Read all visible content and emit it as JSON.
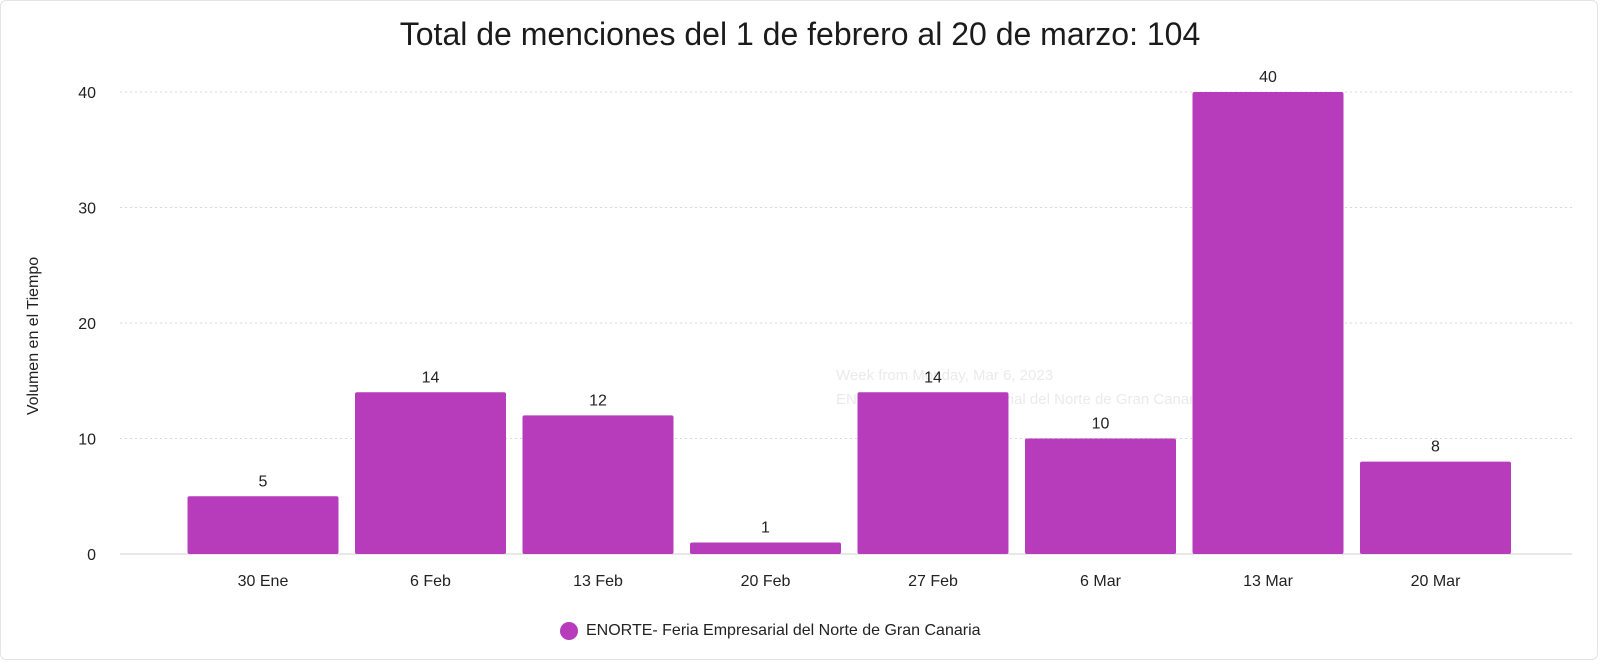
{
  "chart_data": {
    "type": "bar",
    "title": "Total de menciones del 1 de febrero al 20 de marzo: 104",
    "xlabel": "",
    "ylabel": "Volumen en el Tiempo",
    "categories": [
      "30 Ene",
      "6 Feb",
      "13 Feb",
      "20 Feb",
      "27 Feb",
      "6 Mar",
      "13 Mar",
      "20 Mar"
    ],
    "series": [
      {
        "name": "ENORTE- Feria Empresarial del Norte de Gran Canaria",
        "values": [
          5,
          14,
          12,
          1,
          14,
          10,
          40,
          8
        ],
        "color": "#b63cbc"
      }
    ],
    "ylim": [
      0,
      40
    ],
    "yticks": [
      0,
      10,
      20,
      30,
      40
    ],
    "grid": true,
    "data_labels": true,
    "legend_position": "bottom"
  },
  "tooltip": {
    "line1": "Week from Monday, Mar 6, 2023",
    "line2": "ENORTE- Feria Empresarial del Norte de Gran Canaria"
  }
}
